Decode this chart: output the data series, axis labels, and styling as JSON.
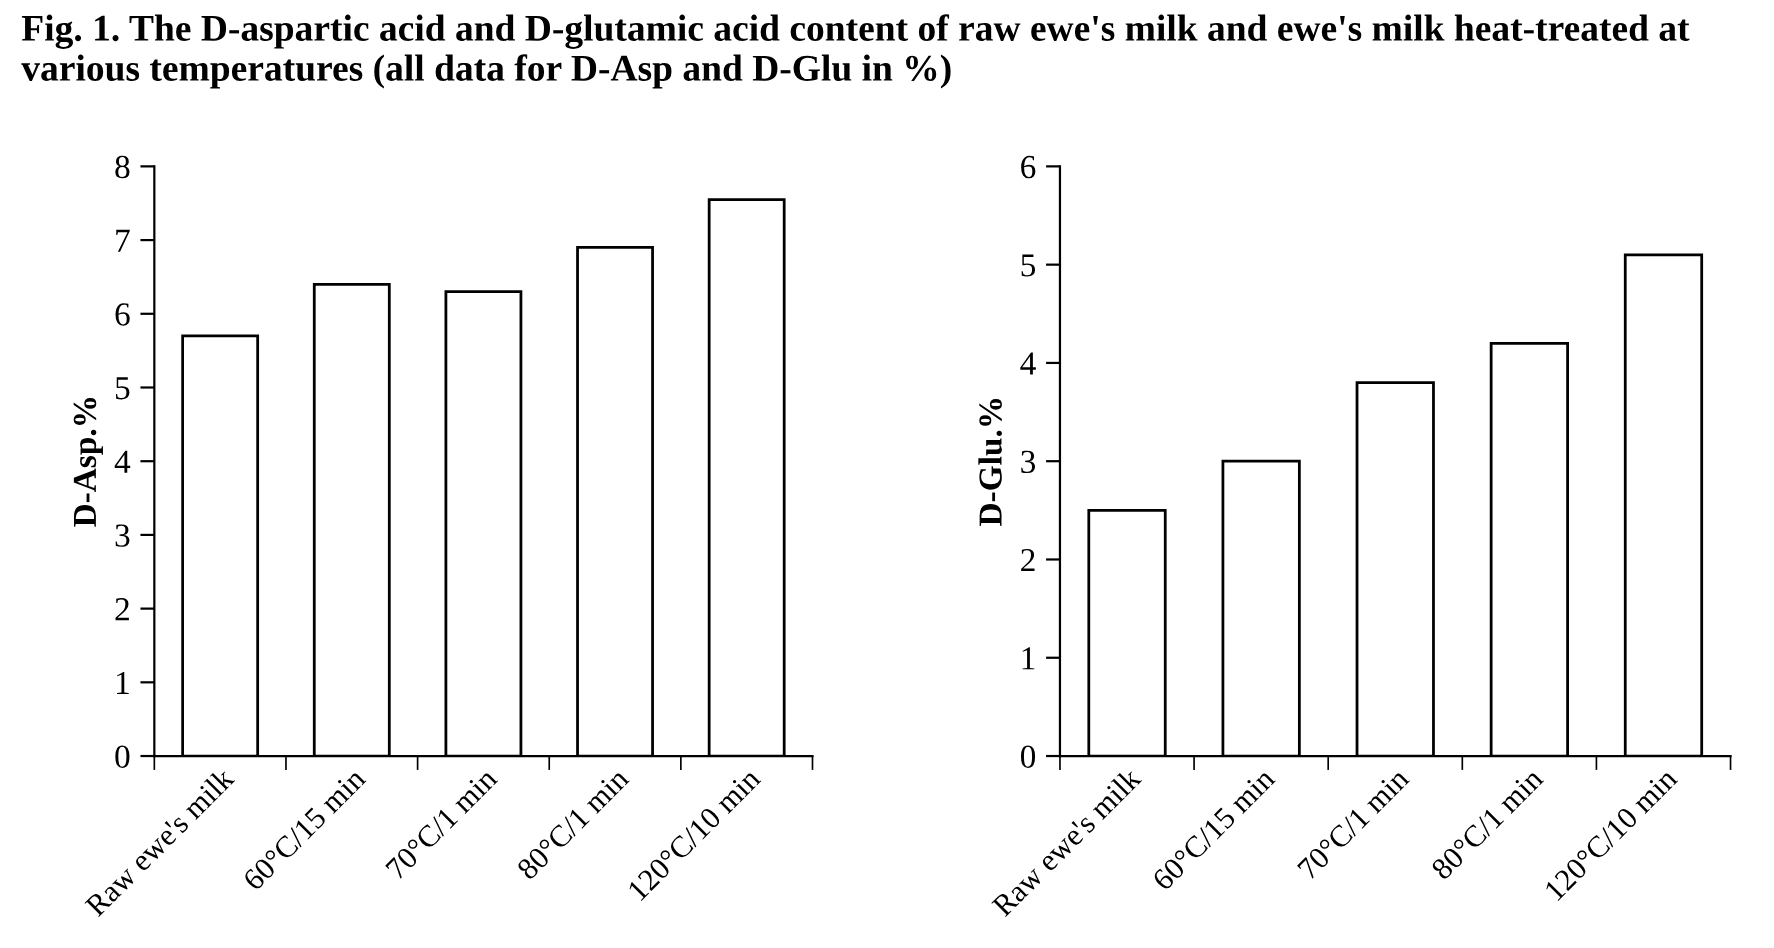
{
  "chart_data": [
    {
      "type": "bar",
      "title": "Fig. 1. The D-aspartic acid and D-glutamic acid content of raw ewe's milk and ewe's milk heat-treated at various temperatures (all data for D-Asp and D-Glu in %)",
      "ylabel": "D-Asp.%",
      "categories": [
        "Raw ewe's milk",
        "60°C/15 min",
        "70°C/1 min",
        "80°C/1 min",
        "120°C/10 min"
      ],
      "values": [
        5.7,
        6.4,
        6.3,
        6.9,
        7.55
      ],
      "color": "#ffffff",
      "ylim": [
        0,
        8
      ],
      "yticks": [
        0,
        1,
        2,
        3,
        4,
        5,
        6,
        7,
        8
      ],
      "grid": false,
      "legend": false
    },
    {
      "type": "bar",
      "ylabel": "D-Glu.%",
      "categories": [
        "Raw ewe's milk",
        "60°C/15 min",
        "70°C/1 min",
        "80°C/1 min",
        "120°C/10 min"
      ],
      "values": [
        2.5,
        3.0,
        3.8,
        4.2,
        5.1
      ],
      "color": "#ffffff",
      "ylim": [
        0,
        6
      ],
      "yticks": [
        0,
        1,
        2,
        3,
        4,
        5,
        6
      ],
      "grid": false,
      "legend": false
    }
  ]
}
